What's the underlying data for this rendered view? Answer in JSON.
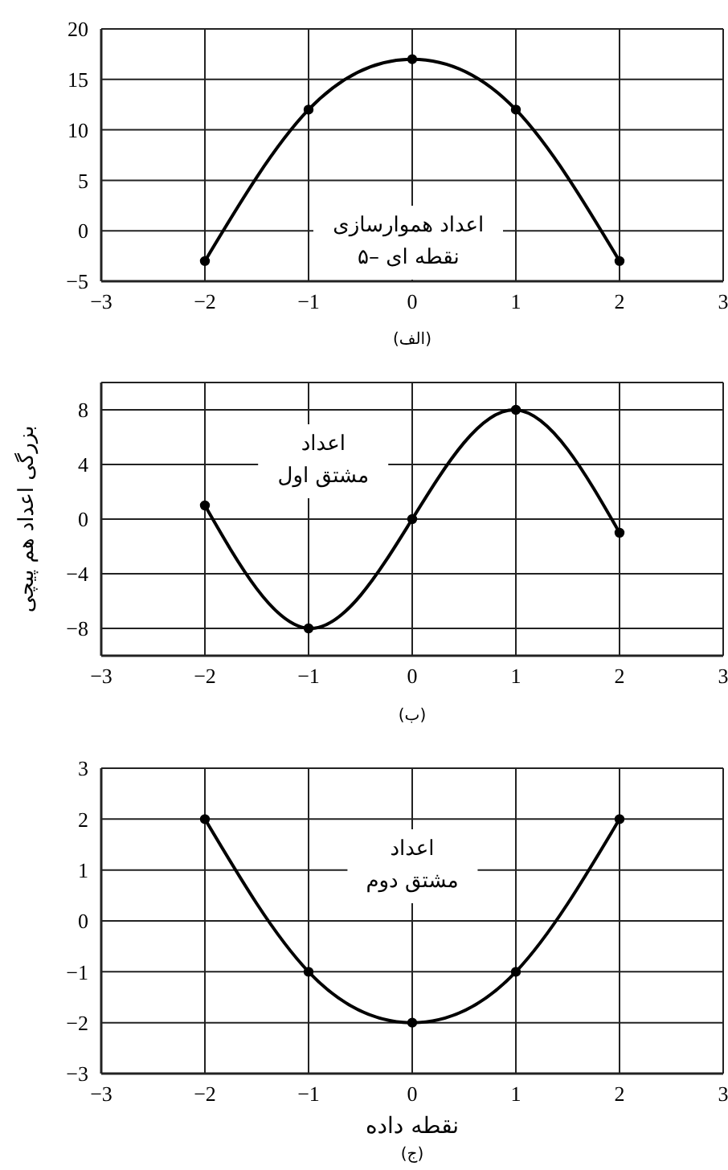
{
  "chart_data": [
    {
      "type": "line",
      "title": "(الف)",
      "x": [
        -2,
        -1,
        0,
        1,
        2
      ],
      "series": [
        {
          "color": "#000000",
          "values": [
            -3,
            12,
            17,
            12,
            -3
          ]
        }
      ],
      "xlim": [
        -3,
        3
      ],
      "xticks": [
        -3,
        -2,
        -1,
        0,
        1,
        2,
        3
      ],
      "ylim": [
        -5,
        20
      ],
      "yticks": [
        -5,
        0,
        5,
        10,
        15,
        20
      ],
      "grid": true,
      "marker": "circle",
      "line_style": "solid",
      "annotations": [
        "اعداد هموارسازی\n۵– نقطه ای"
      ]
    },
    {
      "type": "line",
      "title": "(ب)",
      "ylabel": "بزرگی اعداد هم پیچی",
      "x": [
        -2,
        -1,
        0,
        1,
        2
      ],
      "series": [
        {
          "color": "#000000",
          "values": [
            1,
            -8,
            0,
            8,
            -1
          ]
        }
      ],
      "xlim": [
        -3,
        3
      ],
      "xticks": [
        -3,
        -2,
        -1,
        0,
        1,
        2,
        3
      ],
      "ylim": [
        -10,
        10
      ],
      "yticks": [
        -8,
        -4,
        0,
        4,
        8
      ],
      "grid": true,
      "marker": "circle",
      "line_style": "solid",
      "annotations": [
        "اعداد\nمشتق اول"
      ]
    },
    {
      "type": "line",
      "title": "(ج)",
      "xlabel": "نقطه داده",
      "x": [
        -2,
        -1,
        0,
        1,
        2
      ],
      "series": [
        {
          "color": "#000000",
          "values": [
            2,
            -1,
            -2,
            -1,
            2
          ]
        }
      ],
      "xlim": [
        -3,
        3
      ],
      "xticks": [
        -3,
        -2,
        -1,
        0,
        1,
        2,
        3
      ],
      "ylim": [
        -3,
        3
      ],
      "yticks": [
        -3,
        -2,
        -1,
        0,
        1,
        2,
        3
      ],
      "grid": true,
      "marker": "circle",
      "line_style": "solid",
      "annotations": [
        "اعداد\nمشتق دوم"
      ]
    }
  ]
}
